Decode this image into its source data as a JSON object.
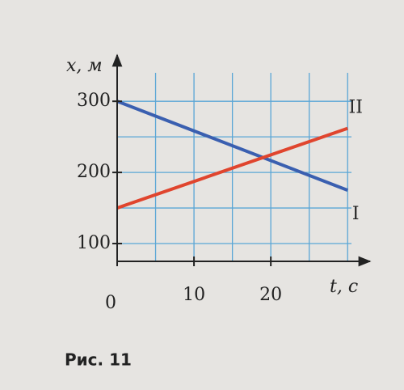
{
  "chart_data": {
    "type": "line",
    "x_label": "t, с",
    "y_label": "x, м",
    "x": [
      0,
      30
    ],
    "series": [
      {
        "name": "I",
        "color": "#3a5fb0",
        "values": [
          300,
          175
        ]
      },
      {
        "name": "II",
        "color": "#e0452e",
        "values": [
          150,
          262
        ]
      }
    ],
    "xlim": [
      0,
      30.5
    ],
    "ylim": [
      75,
      340
    ],
    "xticks": [
      0,
      10,
      20
    ],
    "yticks": [
      100,
      200,
      300
    ],
    "xgrid": [
      5,
      10,
      15,
      20,
      25,
      30
    ],
    "ygrid": [
      100,
      150,
      200,
      250,
      300
    ],
    "grid": true
  },
  "caption": "Рис. 11"
}
